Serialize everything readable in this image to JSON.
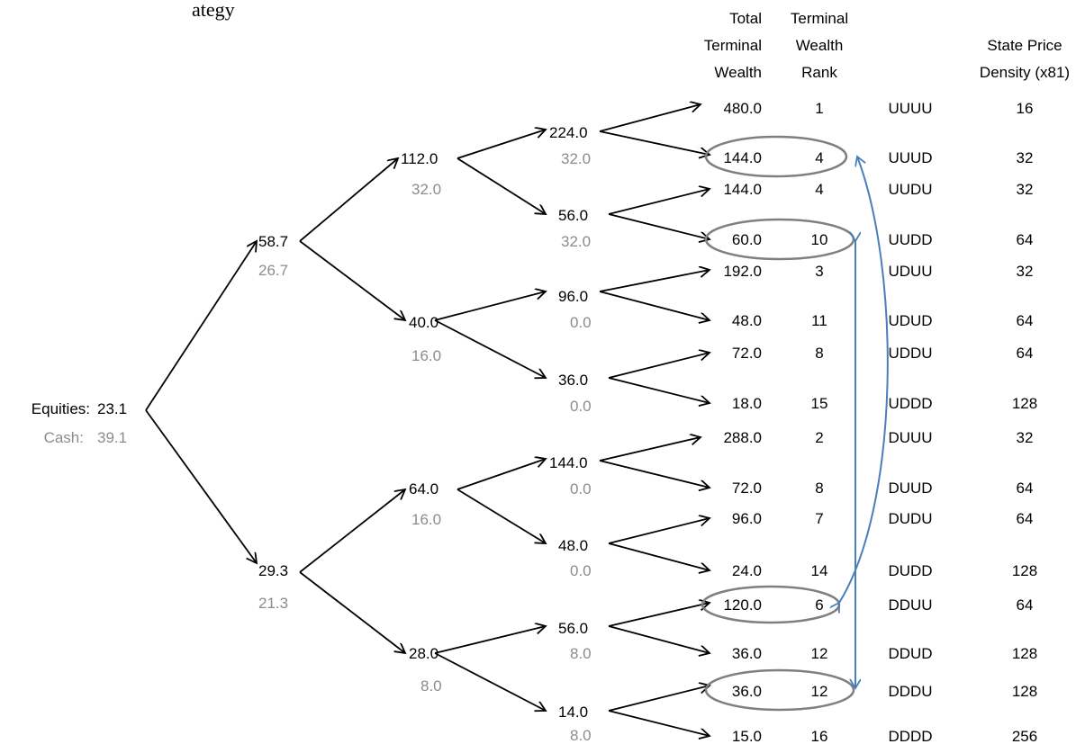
{
  "title_fragment": "ategy",
  "headers": {
    "total_terminal_wealth": [
      "Total",
      "Terminal",
      "Wealth"
    ],
    "terminal_wealth_rank": [
      "Terminal",
      "Wealth",
      "Rank"
    ],
    "state_price_density": [
      "State Price",
      "Density (x81)"
    ]
  },
  "root": {
    "equities_label": "Equities:",
    "equities_value": "23.1",
    "cash_label": "Cash:",
    "cash_value": "39.1"
  },
  "level1": [
    {
      "equity": "58.7",
      "cash": "26.7"
    },
    {
      "equity": "29.3",
      "cash": "21.3"
    }
  ],
  "level2": [
    {
      "equity": "112.0",
      "cash": "32.0"
    },
    {
      "equity": "40.0",
      "cash": "16.0"
    },
    {
      "equity": "64.0",
      "cash": "16.0"
    },
    {
      "equity": "28.0",
      "cash": "8.0"
    }
  ],
  "level3": [
    {
      "equity": "224.0",
      "cash": "32.0"
    },
    {
      "equity": "56.0",
      "cash": "32.0"
    },
    {
      "equity": "96.0",
      "cash": "0.0"
    },
    {
      "equity": "36.0",
      "cash": "0.0"
    },
    {
      "equity": "144.0",
      "cash": "0.0"
    },
    {
      "equity": "48.0",
      "cash": "0.0"
    },
    {
      "equity": "56.0",
      "cash": "8.0"
    },
    {
      "equity": "14.0",
      "cash": "8.0"
    }
  ],
  "terminal": [
    {
      "wealth": "480.0",
      "rank": "1",
      "path": "UUUU",
      "density": "16",
      "circled": false
    },
    {
      "wealth": "144.0",
      "rank": "4",
      "path": "UUUD",
      "density": "32",
      "circled": true
    },
    {
      "wealth": "144.0",
      "rank": "4",
      "path": "UUDU",
      "density": "32",
      "circled": false
    },
    {
      "wealth": "60.0",
      "rank": "10",
      "path": "UUDD",
      "density": "64",
      "circled": true
    },
    {
      "wealth": "192.0",
      "rank": "3",
      "path": "UDUU",
      "density": "32",
      "circled": false
    },
    {
      "wealth": "48.0",
      "rank": "11",
      "path": "UDUD",
      "density": "64",
      "circled": false
    },
    {
      "wealth": "72.0",
      "rank": "8",
      "path": "UDDU",
      "density": "64",
      "circled": false
    },
    {
      "wealth": "18.0",
      "rank": "15",
      "path": "UDDD",
      "density": "128",
      "circled": false
    },
    {
      "wealth": "288.0",
      "rank": "2",
      "path": "DUUU",
      "density": "32",
      "circled": false
    },
    {
      "wealth": "72.0",
      "rank": "8",
      "path": "DUUD",
      "density": "64",
      "circled": false
    },
    {
      "wealth": "96.0",
      "rank": "7",
      "path": "DUDU",
      "density": "64",
      "circled": false
    },
    {
      "wealth": "24.0",
      "rank": "14",
      "path": "DUDD",
      "density": "128",
      "circled": false
    },
    {
      "wealth": "120.0",
      "rank": "6",
      "path": "DDUU",
      "density": "64",
      "circled": true
    },
    {
      "wealth": "36.0",
      "rank": "12",
      "path": "DDUD",
      "density": "128",
      "circled": false
    },
    {
      "wealth": "36.0",
      "rank": "12",
      "path": "DDDU",
      "density": "128",
      "circled": true
    },
    {
      "wealth": "15.0",
      "rank": "16",
      "path": "DDDD",
      "density": "256",
      "circled": false
    }
  ],
  "colors": {
    "arrow": "#000000",
    "cash_text": "#8c8c8c",
    "ellipse": "#7f7f7f",
    "swap_arrow": "#4a7ebb"
  }
}
